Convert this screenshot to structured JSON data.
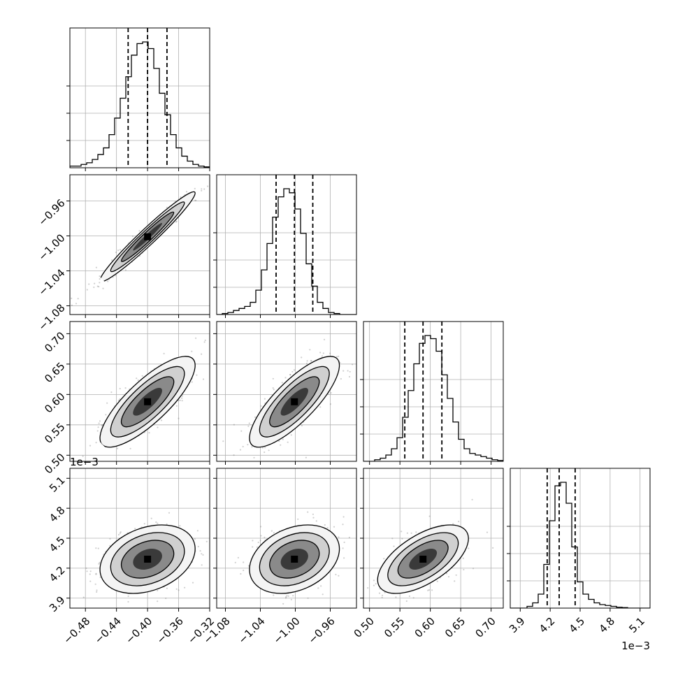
{
  "chart_data": {
    "type": "corner",
    "grid": true,
    "dims": [
      {
        "range": [
          -0.5,
          -0.32
        ],
        "ticks": [
          "−0.48",
          "−0.44",
          "−0.40",
          "−0.36",
          "−0.32"
        ],
        "tick_values": [
          -0.48,
          -0.44,
          -0.4,
          -0.36,
          -0.32
        ],
        "quantiles": [
          -0.425,
          -0.4,
          -0.375
        ],
        "offset": ""
      },
      {
        "range": [
          -1.09,
          -0.93
        ],
        "ticks": [
          "−1.08",
          "−1.04",
          "−1.00",
          "−0.96"
        ],
        "tick_values": [
          -1.08,
          -1.04,
          -1.0,
          -0.96
        ],
        "quantiles": [
          -1.022,
          -1.001,
          -0.98
        ],
        "offset": ""
      },
      {
        "range": [
          0.49,
          0.72
        ],
        "ticks": [
          "0.50",
          "0.55",
          "0.60",
          "0.65",
          "0.70"
        ],
        "tick_values": [
          0.5,
          0.55,
          0.6,
          0.65,
          0.7
        ],
        "quantiles": [
          0.558,
          0.588,
          0.619
        ],
        "offset": ""
      },
      {
        "range": [
          3.8,
          5.2
        ],
        "ticks": [
          "3.9",
          "4.2",
          "4.5",
          "4.8",
          "5.1"
        ],
        "tick_values": [
          3.9,
          4.2,
          4.5,
          4.8,
          5.1
        ],
        "quantiles": [
          4.17,
          4.29,
          4.45
        ],
        "offset": "1e−3"
      }
    ],
    "histograms": [
      [
        1,
        1,
        2,
        3,
        5,
        8,
        12,
        20,
        30,
        42,
        55,
        68,
        75,
        76,
        72,
        60,
        45,
        32,
        20,
        12,
        7,
        4,
        2,
        1,
        0.5
      ],
      [
        0,
        0.5,
        1,
        2,
        3,
        4,
        6,
        12,
        22,
        35,
        48,
        58,
        62,
        60,
        52,
        40,
        25,
        14,
        6,
        3,
        1,
        0.5,
        0,
        0,
        0
      ],
      [
        0,
        0,
        1,
        2,
        4,
        8,
        15,
        28,
        45,
        62,
        75,
        80,
        78,
        70,
        55,
        40,
        25,
        14,
        8,
        5,
        4,
        3,
        2,
        1,
        0.5
      ],
      [
        0,
        0,
        0,
        1,
        3,
        8,
        25,
        50,
        70,
        72,
        60,
        35,
        15,
        8,
        5,
        3,
        2,
        1.5,
        1,
        0.5,
        0.3,
        0,
        0,
        0,
        0
      ]
    ],
    "correlations": {
      "1-0": 0.97,
      "2-0": 0.8,
      "2-1": 0.8,
      "3-0": 0.3,
      "3-1": 0.3,
      "3-2": 0.6
    }
  }
}
